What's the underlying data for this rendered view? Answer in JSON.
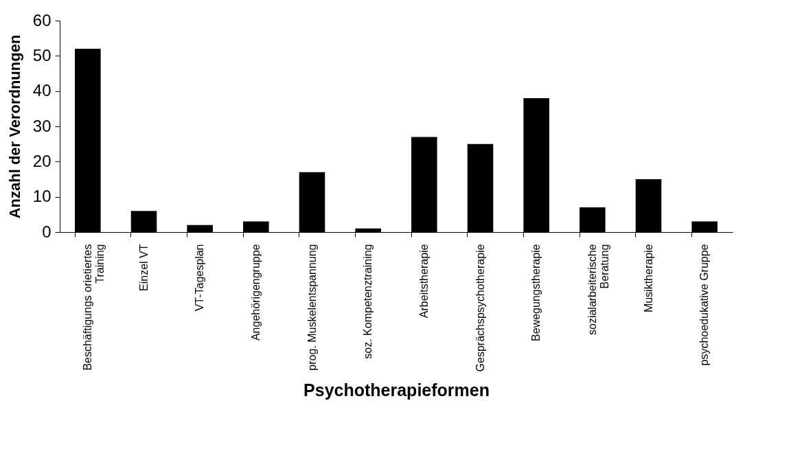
{
  "chart_data": {
    "type": "bar",
    "xlabel": "Psychotherapieformen",
    "ylabel": "Anzahl der Verordnungen",
    "categories": [
      "Beschäftigungs orietiertes Training",
      "Einzel VT",
      "VT-Tagesplan",
      "Angehörigengruppe",
      "prog. Muskelentspannung",
      "soz. Kompetenztraining",
      "Arbeitstherapie",
      "Gesprächspsychotherapie",
      "Bewegungstherapie",
      "sozialarbeiterische Beratung",
      "Musiktherapie",
      "psychoedukative Gruppe"
    ],
    "values": [
      52,
      6,
      2,
      3,
      17,
      1,
      27,
      25,
      38,
      7,
      15,
      3
    ],
    "color": "#000000",
    "ylim": [
      0,
      60
    ],
    "yticks": [
      0,
      10,
      20,
      30,
      40,
      50,
      60
    ],
    "grid": false
  }
}
